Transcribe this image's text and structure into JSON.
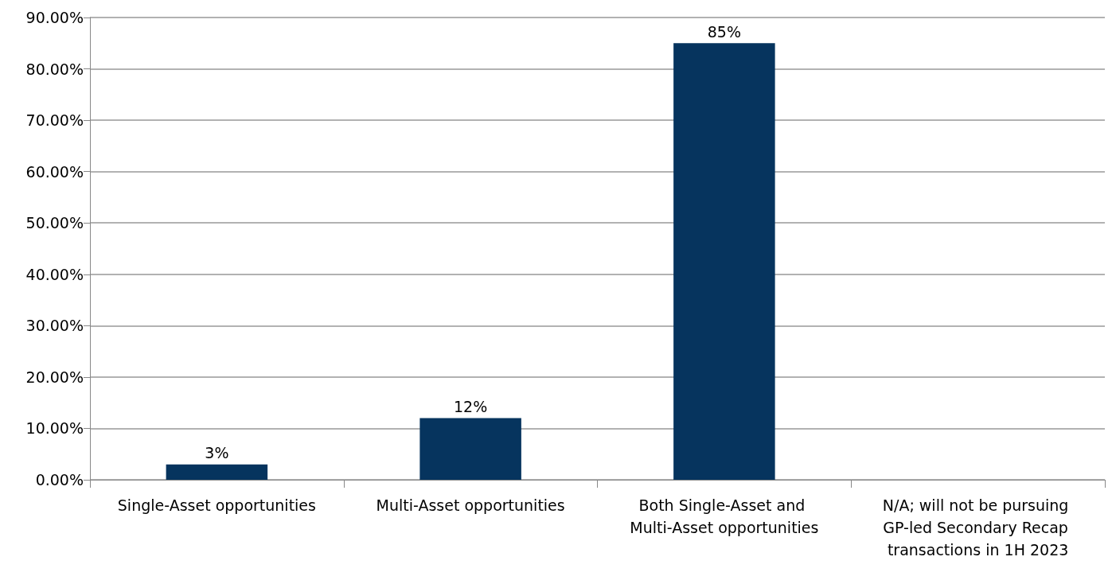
{
  "chart_data": {
    "type": "bar",
    "categories": [
      "Single-Asset opportunities",
      "Multi-Asset opportunities",
      "Both Single-Asset and Multi-Asset opportunities",
      "N/A; will not be pursuing GP-led Secondary Recap transactions in 1H 2023"
    ],
    "values": [
      3,
      12,
      85,
      0
    ],
    "value_labels": [
      "3%",
      "12%",
      "85%",
      null
    ],
    "color": "#06345e",
    "ylim": [
      0,
      90
    ],
    "yticks": [
      {
        "value": 0,
        "label": "0.00%"
      },
      {
        "value": 10,
        "label": "10.00%"
      },
      {
        "value": 20,
        "label": "20.00%"
      },
      {
        "value": 30,
        "label": "30.00%"
      },
      {
        "value": 40,
        "label": "40.00%"
      },
      {
        "value": 50,
        "label": "50.00%"
      },
      {
        "value": 60,
        "label": "60.00%"
      },
      {
        "value": 70,
        "label": "70.00%"
      },
      {
        "value": 80,
        "label": "80.00%"
      },
      {
        "value": 90,
        "label": "90.00%"
      }
    ],
    "grid": "y"
  }
}
